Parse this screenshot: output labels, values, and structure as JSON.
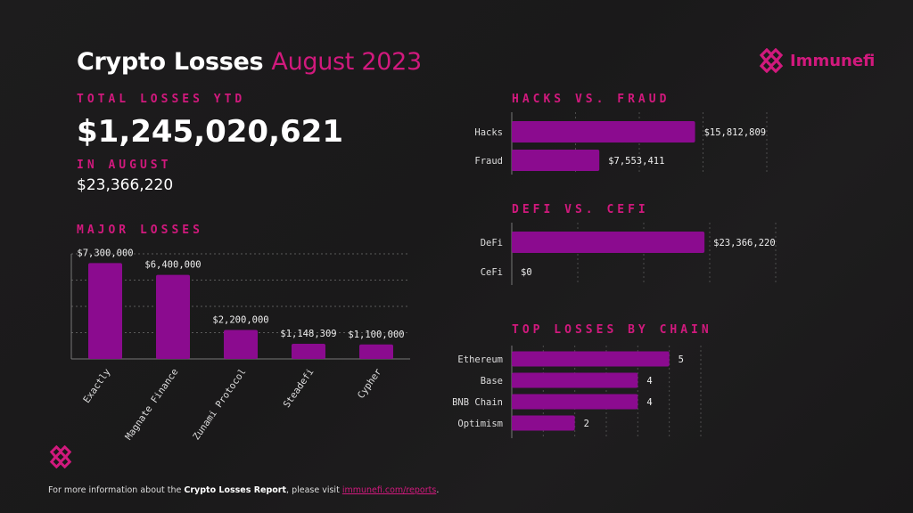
{
  "header": {
    "title_main": "Crypto Losses",
    "title_accent": "August 2023",
    "brand": "Immunefi"
  },
  "summary": {
    "total_label": "TOTAL LOSSES YTD",
    "total_value": "$1,245,020,621",
    "month_label": "IN AUGUST",
    "month_value": "$23,366,220"
  },
  "footer": {
    "text_pre": "For more information about the ",
    "text_bold": "Crypto Losses Report",
    "text_mid": ", please visit ",
    "link": "immunefi.com/reports",
    "text_end": "."
  },
  "colors": {
    "accent": "#d1197d",
    "bar": "#8b0b8f",
    "background": "#1b1a1b"
  },
  "chart_data": [
    {
      "id": "major",
      "type": "bar",
      "title": "MAJOR LOSSES",
      "categories": [
        "Exactly",
        "Magnate Finance",
        "Zunami Protocol",
        "Steadefi",
        "Cypher"
      ],
      "values": [
        7300000,
        6400000,
        2200000,
        1148309,
        1100000
      ],
      "labels": [
        "$7,300,000",
        "$6,400,000",
        "$2,200,000",
        "$1,148,309",
        "$1,100,000"
      ],
      "ylim": [
        0,
        8000000
      ],
      "grid": true
    },
    {
      "id": "hacks",
      "type": "bar",
      "orientation": "horizontal",
      "title": "HACKS VS. FRAUD",
      "categories": [
        "Hacks",
        "Fraud"
      ],
      "values": [
        15812809,
        7553411
      ],
      "labels": [
        "$15,812,809",
        "$7,553,411"
      ],
      "xlim": [
        0,
        22000000
      ],
      "grid": true
    },
    {
      "id": "defi",
      "type": "bar",
      "orientation": "horizontal",
      "title": "DEFI VS. CEFI",
      "categories": [
        "DeFi",
        "CeFi"
      ],
      "values": [
        23366220,
        0
      ],
      "labels": [
        "$23,366,220",
        "$0"
      ],
      "xlim": [
        0,
        32000000
      ],
      "grid": true
    },
    {
      "id": "chain",
      "type": "bar",
      "orientation": "horizontal",
      "title": "TOP LOSSES BY CHAIN",
      "categories": [
        "Ethereum",
        "Base",
        "BNB Chain",
        "Optimism"
      ],
      "values": [
        5,
        4,
        4,
        2
      ],
      "labels": [
        "5",
        "4",
        "4",
        "2"
      ],
      "xlim": [
        0,
        6
      ],
      "grid": true
    }
  ]
}
